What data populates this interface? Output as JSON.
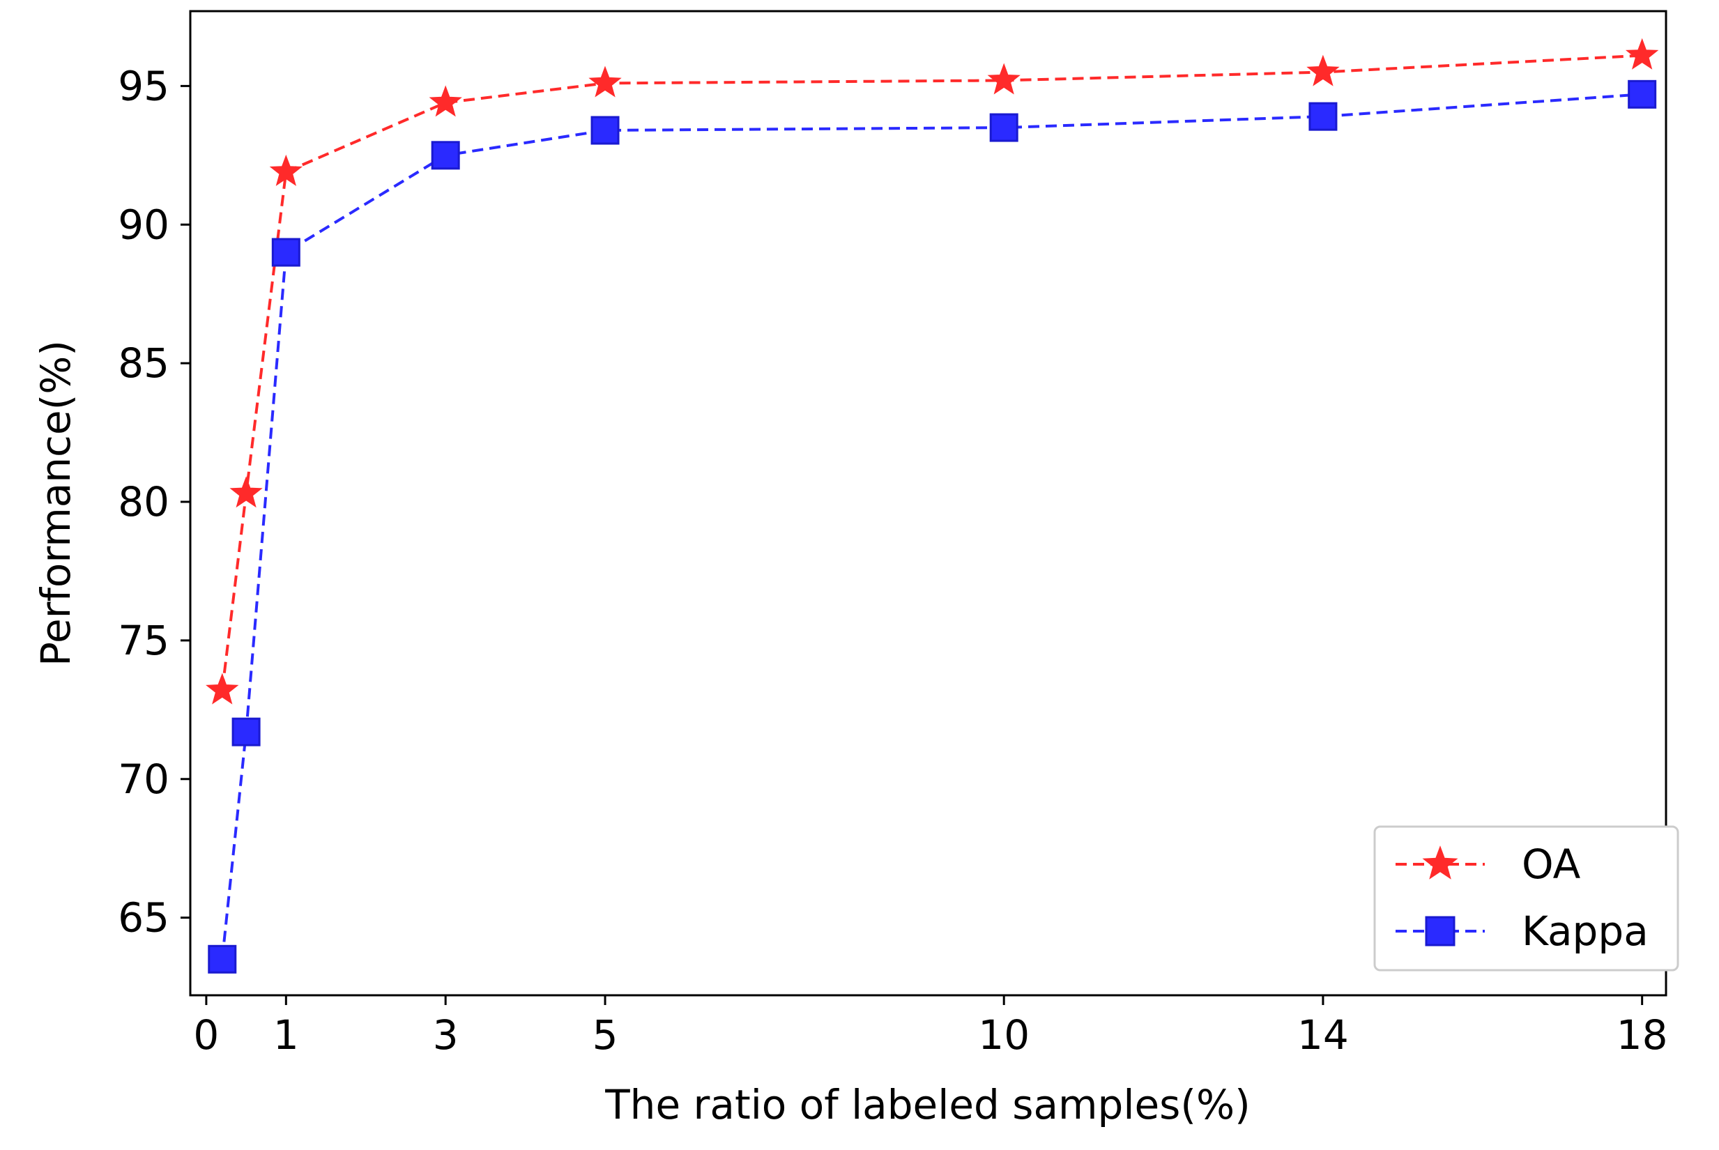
{
  "chart_data": {
    "type": "line",
    "title": "",
    "xlabel": "The ratio of labeled samples(%)",
    "ylabel": "Performance(%)",
    "xlim": [
      -0.2,
      18.3
    ],
    "ylim": [
      62.2,
      97.7
    ],
    "x_ticks": [
      0,
      1,
      3,
      5,
      10,
      14,
      18
    ],
    "y_ticks": [
      65,
      70,
      75,
      80,
      85,
      90,
      95
    ],
    "grid": false,
    "legend_position": "lower-right",
    "series": [
      {
        "name": "OA",
        "color": "#ff2a2a",
        "marker": "star",
        "line_style": "dashed",
        "x": [
          0.2,
          0.5,
          1,
          3,
          5,
          10,
          14,
          18
        ],
        "y": [
          73.2,
          80.3,
          91.9,
          94.4,
          95.1,
          95.2,
          95.5,
          96.1
        ]
      },
      {
        "name": "Kappa",
        "color": "#2a2aff",
        "marker": "square",
        "line_style": "dashed",
        "x": [
          0.2,
          0.5,
          1,
          3,
          5,
          10,
          14,
          18
        ],
        "y": [
          63.5,
          71.7,
          89.0,
          92.5,
          93.4,
          93.5,
          93.9,
          94.7
        ]
      }
    ]
  }
}
